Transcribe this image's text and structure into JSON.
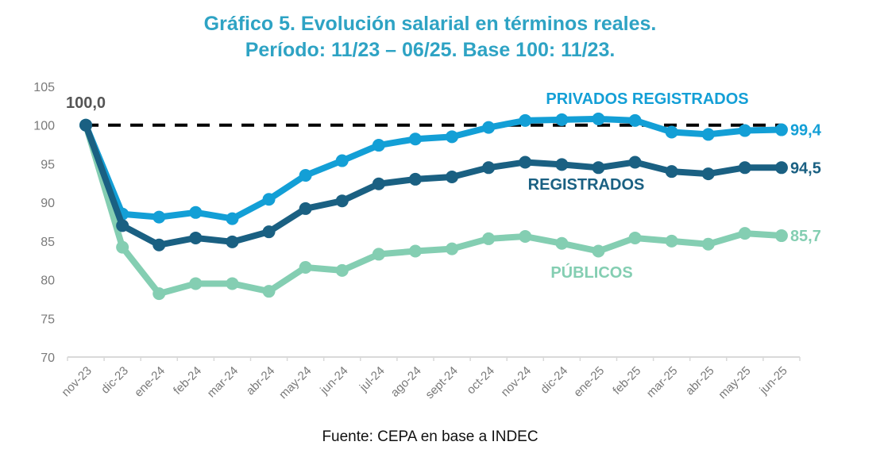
{
  "chart_data": {
    "type": "line",
    "title": "Gráfico 5. Evolución salarial en términos reales.",
    "subtitle": "Período: 11/23 – 06/25. Base 100: 11/23.",
    "source": "Fuente: CEPA en base a INDEC",
    "xlabel": "",
    "ylabel": "",
    "ylim": [
      70,
      105
    ],
    "yticks": [
      70,
      75,
      80,
      85,
      90,
      95,
      100,
      105
    ],
    "grid": false,
    "legend": "inline-labels",
    "categories": [
      "nov-23",
      "dic-23",
      "ene-24",
      "feb-24",
      "mar-24",
      "abr-24",
      "may-24",
      "jun-24",
      "jul-24",
      "ago-24",
      "sept-24",
      "oct-24",
      "nov-24",
      "dic-24",
      "ene-25",
      "feb-25",
      "mar-25",
      "abr-25",
      "may-25",
      "jun-25"
    ],
    "reference_line": {
      "value": 100,
      "style": "dashed",
      "color": "#000000"
    },
    "start_label": "100,0",
    "series": [
      {
        "name": "PRIVADOS REGISTRADOS",
        "color": "#139fd6",
        "end_label": "99,4",
        "values": [
          100,
          88.5,
          88.1,
          88.7,
          87.9,
          90.4,
          93.5,
          95.4,
          97.4,
          98.2,
          98.5,
          99.7,
          100.6,
          100.7,
          100.8,
          100.6,
          99.1,
          98.8,
          99.3,
          99.4
        ]
      },
      {
        "name": "REGISTRADOS",
        "color": "#1a6082",
        "end_label": "94,5",
        "values": [
          100,
          87.0,
          84.5,
          85.4,
          84.9,
          86.2,
          89.2,
          90.2,
          92.4,
          93.0,
          93.3,
          94.5,
          95.2,
          94.9,
          94.5,
          95.2,
          94.0,
          93.7,
          94.5,
          94.5
        ]
      },
      {
        "name": "PÚBLICOS",
        "color": "#84ceb2",
        "end_label": "85,7",
        "values": [
          100,
          84.2,
          78.2,
          79.5,
          79.5,
          78.5,
          81.6,
          81.2,
          83.3,
          83.7,
          84.0,
          85.3,
          85.6,
          84.7,
          83.7,
          85.4,
          85.0,
          84.6,
          86.0,
          85.7
        ]
      }
    ]
  }
}
